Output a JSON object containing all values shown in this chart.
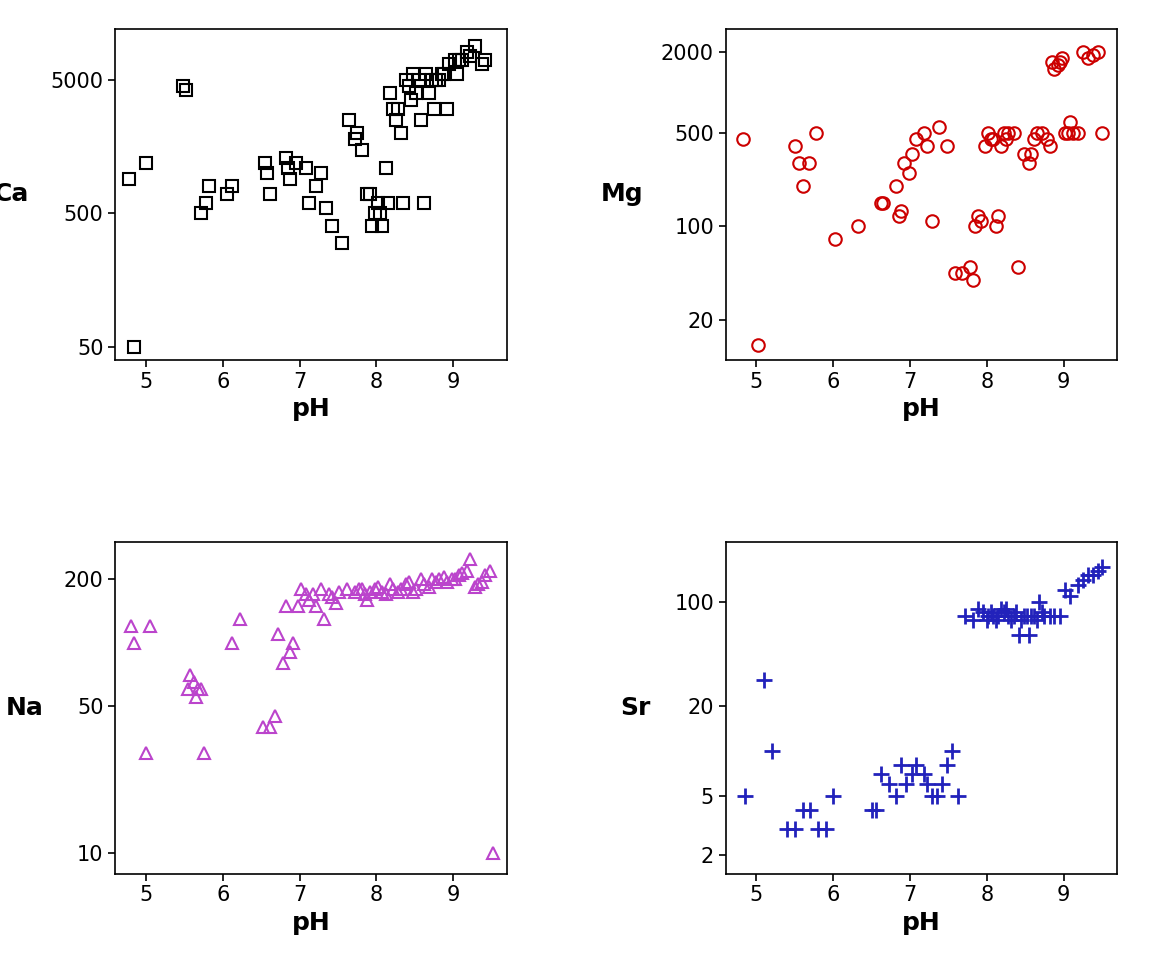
{
  "Ca_pH": [
    4.78,
    4.85,
    5.0,
    5.48,
    5.52,
    5.72,
    5.78,
    5.82,
    6.05,
    6.12,
    6.55,
    6.58,
    6.62,
    6.82,
    6.85,
    6.88,
    6.95,
    7.08,
    7.12,
    7.22,
    7.28,
    7.35,
    7.42,
    7.55,
    7.65,
    7.72,
    7.75,
    7.82,
    7.88,
    7.92,
    7.95,
    7.98,
    8.02,
    8.05,
    8.08,
    8.12,
    8.15,
    8.18,
    8.22,
    8.25,
    8.28,
    8.32,
    8.35,
    8.38,
    8.42,
    8.45,
    8.48,
    8.52,
    8.55,
    8.58,
    8.62,
    8.65,
    8.68,
    8.72,
    8.75,
    8.78,
    8.82,
    8.85,
    8.88,
    8.92,
    8.95,
    9.02,
    9.05,
    9.08,
    9.12,
    9.18,
    9.22,
    9.28,
    9.38,
    9.42
  ],
  "Ca_vals": [
    900,
    50,
    1200,
    4500,
    4200,
    500,
    600,
    800,
    700,
    800,
    1200,
    1000,
    700,
    1300,
    1100,
    900,
    1200,
    1100,
    600,
    800,
    1000,
    550,
    400,
    300,
    2500,
    1800,
    2000,
    1500,
    700,
    700,
    400,
    500,
    600,
    500,
    400,
    1100,
    600,
    4000,
    3000,
    2500,
    3000,
    2000,
    600,
    5000,
    4500,
    3500,
    5500,
    4000,
    5000,
    2500,
    600,
    5500,
    4000,
    5000,
    3000,
    5000,
    5000,
    5500,
    5500,
    3000,
    6500,
    7000,
    5500,
    7000,
    7000,
    8000,
    7500,
    9000,
    6500,
    7000
  ],
  "Mg_pH": [
    4.82,
    5.02,
    5.5,
    5.55,
    5.6,
    5.68,
    5.78,
    6.02,
    6.32,
    6.62,
    6.65,
    6.82,
    6.85,
    6.88,
    6.92,
    6.98,
    7.02,
    7.08,
    7.18,
    7.22,
    7.28,
    7.38,
    7.48,
    7.58,
    7.68,
    7.78,
    7.82,
    7.85,
    7.88,
    7.92,
    7.98,
    8.02,
    8.05,
    8.08,
    8.12,
    8.15,
    8.18,
    8.22,
    8.25,
    8.28,
    8.35,
    8.4,
    8.48,
    8.55,
    8.58,
    8.62,
    8.65,
    8.72,
    8.78,
    8.82,
    8.85,
    8.88,
    8.92,
    8.95,
    8.98,
    9.02,
    9.05,
    9.08,
    9.12,
    9.18,
    9.25,
    9.32,
    9.38,
    9.45,
    9.5
  ],
  "Mg_vals": [
    450,
    13,
    400,
    300,
    200,
    300,
    500,
    80,
    100,
    150,
    150,
    200,
    120,
    130,
    300,
    250,
    350,
    450,
    500,
    400,
    110,
    550,
    400,
    45,
    45,
    50,
    40,
    100,
    120,
    110,
    400,
    500,
    450,
    450,
    100,
    120,
    400,
    500,
    450,
    500,
    500,
    50,
    350,
    300,
    350,
    450,
    500,
    500,
    450,
    400,
    1700,
    1500,
    1600,
    1700,
    1800,
    500,
    500,
    600,
    500,
    500,
    2000,
    1800,
    1900,
    2000,
    500
  ],
  "Na_pH": [
    4.8,
    4.85,
    5.0,
    5.05,
    5.55,
    5.58,
    5.62,
    5.65,
    5.68,
    5.72,
    5.75,
    6.12,
    6.22,
    6.52,
    6.62,
    6.68,
    6.72,
    6.78,
    6.82,
    6.88,
    6.92,
    6.98,
    7.02,
    7.08,
    7.12,
    7.18,
    7.22,
    7.28,
    7.32,
    7.38,
    7.42,
    7.48,
    7.52,
    7.62,
    7.72,
    7.78,
    7.82,
    7.85,
    7.88,
    7.92,
    7.98,
    8.02,
    8.08,
    8.12,
    8.18,
    8.22,
    8.28,
    8.32,
    8.38,
    8.42,
    8.48,
    8.52,
    8.58,
    8.62,
    8.68,
    8.72,
    8.78,
    8.82,
    8.88,
    8.92,
    8.98,
    9.02,
    9.08,
    9.12,
    9.18,
    9.22,
    9.28,
    9.32,
    9.38,
    9.42,
    9.48,
    9.52
  ],
  "Na_vals": [
    120,
    100,
    30,
    120,
    60,
    70,
    65,
    55,
    60,
    60,
    30,
    100,
    130,
    40,
    40,
    45,
    110,
    80,
    150,
    90,
    100,
    150,
    180,
    170,
    160,
    170,
    150,
    180,
    130,
    170,
    165,
    155,
    175,
    180,
    175,
    180,
    180,
    170,
    160,
    175,
    180,
    185,
    175,
    170,
    190,
    180,
    175,
    180,
    190,
    195,
    175,
    180,
    200,
    190,
    185,
    200,
    195,
    200,
    205,
    195,
    200,
    200,
    210,
    215,
    220,
    250,
    185,
    190,
    195,
    210,
    220,
    10
  ],
  "Sr_pH": [
    4.85,
    5.1,
    5.2,
    5.4,
    5.5,
    5.6,
    5.7,
    5.8,
    5.9,
    6.0,
    6.5,
    6.55,
    6.62,
    6.72,
    6.82,
    6.88,
    6.95,
    7.02,
    7.08,
    7.18,
    7.22,
    7.28,
    7.35,
    7.42,
    7.48,
    7.55,
    7.62,
    7.72,
    7.82,
    7.88,
    7.95,
    8.0,
    8.02,
    8.05,
    8.08,
    8.12,
    8.15,
    8.18,
    8.22,
    8.25,
    8.28,
    8.32,
    8.35,
    8.38,
    8.42,
    8.45,
    8.48,
    8.52,
    8.55,
    8.58,
    8.62,
    8.65,
    8.68,
    8.72,
    8.75,
    8.82,
    8.88,
    8.95,
    9.02,
    9.08,
    9.18,
    9.25,
    9.32,
    9.38,
    9.45,
    9.5
  ],
  "Sr_vals": [
    5,
    30,
    10,
    3,
    3,
    4,
    4,
    3,
    3,
    5,
    4,
    4,
    7,
    6,
    5,
    8,
    6,
    7,
    8,
    7,
    6,
    5,
    5,
    6,
    8,
    10,
    5,
    80,
    75,
    90,
    85,
    75,
    80,
    85,
    80,
    75,
    80,
    90,
    85,
    90,
    80,
    75,
    80,
    85,
    60,
    75,
    80,
    80,
    60,
    80,
    80,
    75,
    100,
    85,
    80,
    80,
    80,
    80,
    120,
    110,
    130,
    140,
    150,
    150,
    160,
    170
  ],
  "Ca_color": "#000000",
  "Mg_color": "#cc0000",
  "Na_color": "#bb44cc",
  "Sr_color": "#2222bb",
  "bg_color": "#ffffff",
  "xlabel": "pH",
  "Ca_ylabel": "Ca",
  "Mg_ylabel": "Mg",
  "Na_ylabel": "Na",
  "Sr_ylabel": "Sr",
  "Ca_yticks": [
    50,
    500,
    5000
  ],
  "Ca_ytick_labels": [
    "50",
    "500",
    "5000"
  ],
  "Ca_ylim": [
    40,
    12000
  ],
  "Mg_yticks": [
    20,
    100,
    500,
    2000
  ],
  "Mg_ytick_labels": [
    "20",
    "100",
    "500",
    "2000"
  ],
  "Mg_ylim": [
    10,
    3000
  ],
  "Na_yticks": [
    10,
    50,
    200
  ],
  "Na_ytick_labels": [
    "10",
    "50",
    "200"
  ],
  "Na_ylim": [
    8,
    300
  ],
  "Sr_yticks": [
    2,
    5,
    20,
    100
  ],
  "Sr_ytick_labels": [
    "2",
    "5",
    "20",
    "100"
  ],
  "Sr_ylim": [
    1.5,
    250
  ],
  "xticks": [
    5,
    6,
    7,
    8,
    9
  ],
  "xlim": [
    4.6,
    9.7
  ],
  "label_fontsize": 18,
  "tick_fontsize": 15,
  "marker_size": 9,
  "marker_lw": 1.5
}
